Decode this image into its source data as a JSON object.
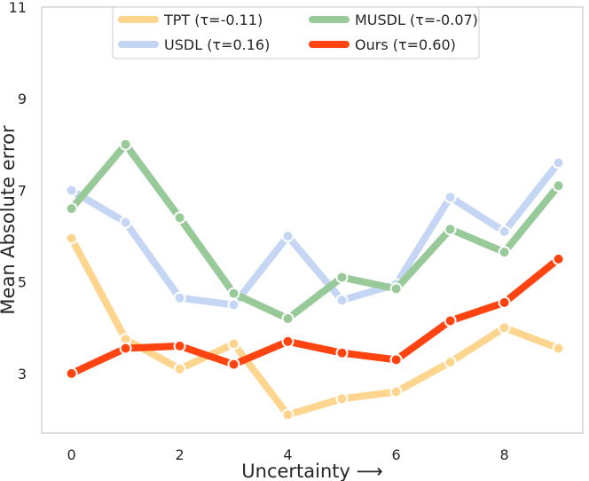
{
  "chart_data": {
    "type": "line",
    "title": "",
    "xlabel": "Uncertainty ⟶",
    "ylabel": "Mean Absolute error",
    "x": [
      0,
      1,
      2,
      3,
      4,
      5,
      6,
      7,
      8,
      9
    ],
    "xlim": [
      -0.55,
      9.45
    ],
    "ylim": [
      1.7,
      11
    ],
    "xticks": [
      "0",
      "2",
      "4",
      "6",
      "8"
    ],
    "yticks": [
      "3",
      "5",
      "7",
      "9",
      "11"
    ],
    "grid": false,
    "legend_position": "top-center",
    "series": [
      {
        "name": "TPT (τ=-0.11)",
        "color": "#fdd58f",
        "values": [
          5.95,
          3.75,
          3.1,
          3.65,
          2.1,
          2.45,
          2.6,
          3.25,
          4.0,
          3.55
        ]
      },
      {
        "name": "USDL (τ=0.16)",
        "color": "#c5d6f5",
        "values": [
          7.0,
          6.3,
          4.65,
          4.5,
          6.0,
          4.6,
          4.95,
          6.85,
          6.1,
          7.6
        ]
      },
      {
        "name": "MUSDL (τ=-0.07)",
        "color": "#98c998",
        "values": [
          6.6,
          8.0,
          6.4,
          4.75,
          4.2,
          5.1,
          4.85,
          6.15,
          5.65,
          7.1
        ]
      },
      {
        "name": "Ours (τ=0.60)",
        "color": "#ff4411",
        "values": [
          3.0,
          3.55,
          3.6,
          3.2,
          3.7,
          3.45,
          3.3,
          4.15,
          4.55,
          5.5
        ]
      }
    ]
  }
}
